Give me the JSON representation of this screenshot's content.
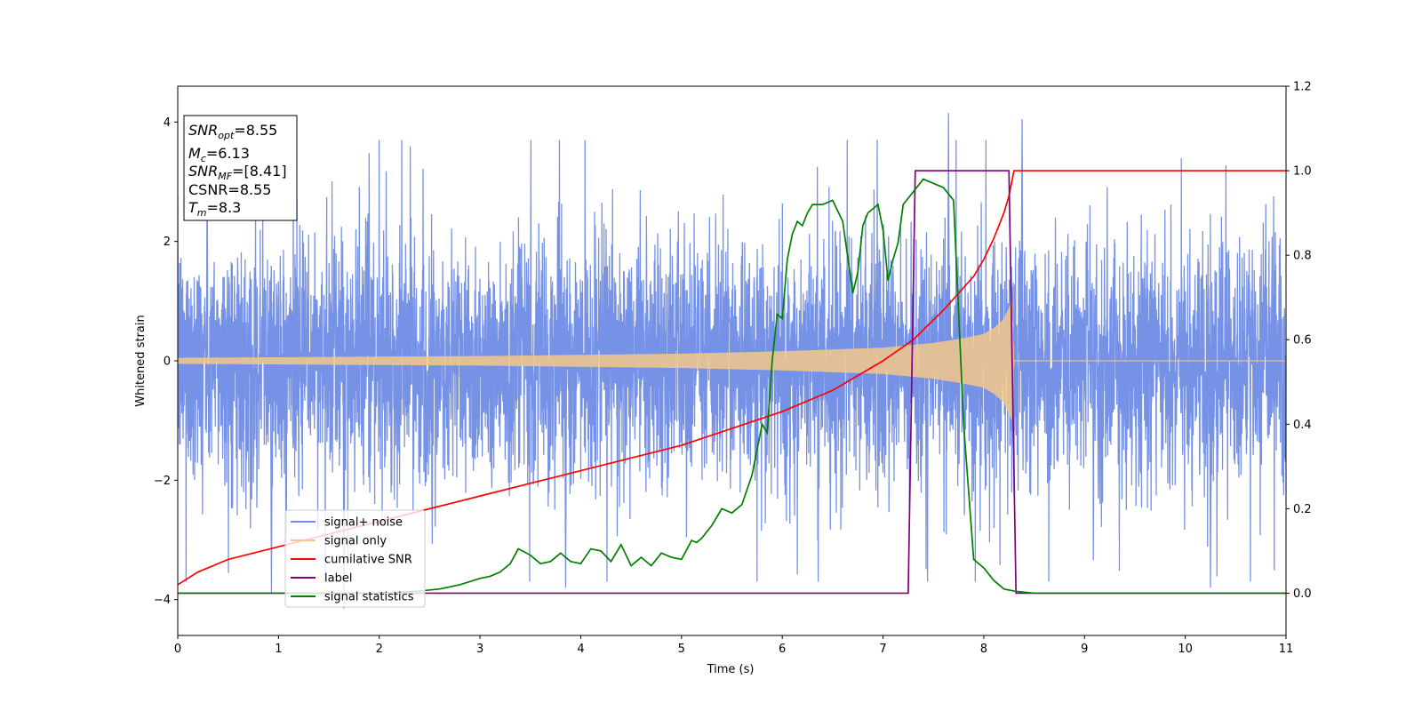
{
  "chart_data": {
    "type": "line",
    "title": "",
    "xlabel": "Time (s)",
    "ylabel_left": "Whitened strain",
    "ylabel_right": "",
    "xlim": [
      0,
      11
    ],
    "ylim_left": [
      -4.6,
      4.6
    ],
    "ylim_right": [
      -0.1,
      1.2
    ],
    "x_ticks": [
      0,
      1,
      2,
      3,
      4,
      5,
      6,
      7,
      8,
      9,
      10,
      11
    ],
    "y_ticks_left": [
      -4,
      -2,
      0,
      2,
      4
    ],
    "y_ticks_right": [
      0.0,
      0.2,
      0.4,
      0.6,
      0.8,
      1.0,
      1.2
    ],
    "x_tick_labels": [
      "0",
      "1",
      "2",
      "3",
      "4",
      "5",
      "6",
      "7",
      "8",
      "9",
      "10",
      "11"
    ],
    "y_tick_labels_left": [
      "−4",
      "−2",
      "0",
      "2",
      "4"
    ],
    "y_tick_labels_right": [
      "0.0",
      "0.2",
      "0.4",
      "0.6",
      "0.8",
      "1.0",
      "1.2"
    ],
    "grid": false,
    "legend_position": "lower-left",
    "colors": {
      "noise": "#6f8ce6",
      "signal": "#f5c88a",
      "cumulative_snr": "#ff0000",
      "label": "#800080",
      "statistics": "#008000"
    },
    "info_box": {
      "snr_opt": "=8.55",
      "mc": "=6.13",
      "snr_mf": "=[8.41]",
      "csnr": "CSNR=8.55",
      "tm": "=8.3"
    },
    "series": [
      {
        "name": "signal+ noise",
        "axis": "left",
        "description_range": [
          -4.2,
          4.2
        ],
        "x_range": [
          0,
          11
        ],
        "envelope_typical": 2.0,
        "peaks": [
          [
            1.65,
            -4.15
          ],
          [
            7.65,
            4.15
          ],
          [
            8.38,
            4.05
          ],
          [
            10.25,
            -3.8
          ],
          [
            0.93,
            -3.9
          ],
          [
            3.85,
            -3.8
          ]
        ]
      },
      {
        "name": "signal only",
        "axis": "left",
        "envelope": [
          [
            0,
            0.05
          ],
          [
            1,
            0.06
          ],
          [
            2,
            0.07
          ],
          [
            3,
            0.08
          ],
          [
            4,
            0.1
          ],
          [
            5,
            0.12
          ],
          [
            6,
            0.16
          ],
          [
            7,
            0.22
          ],
          [
            7.5,
            0.3
          ],
          [
            7.8,
            0.38
          ],
          [
            8.0,
            0.45
          ],
          [
            8.1,
            0.55
          ],
          [
            8.2,
            0.7
          ],
          [
            8.28,
            1.0
          ],
          [
            8.3,
            0.0
          ],
          [
            11,
            0.0
          ]
        ]
      },
      {
        "name": "cumilative SNR",
        "axis": "right",
        "x": [
          0,
          0.2,
          0.5,
          1,
          1.5,
          2,
          2.5,
          3,
          3.5,
          4,
          4.5,
          5,
          5.5,
          6,
          6.5,
          7,
          7.3,
          7.6,
          7.9,
          8.0,
          8.1,
          8.2,
          8.25,
          8.3,
          11
        ],
        "y": [
          0.02,
          0.05,
          0.08,
          0.11,
          0.14,
          0.17,
          0.2,
          0.23,
          0.26,
          0.29,
          0.32,
          0.35,
          0.39,
          0.43,
          0.48,
          0.55,
          0.6,
          0.67,
          0.75,
          0.79,
          0.84,
          0.9,
          0.94,
          1.0,
          1.0
        ]
      },
      {
        "name": "label",
        "axis": "right",
        "x": [
          0,
          7.25,
          7.32,
          8.25,
          8.32,
          11
        ],
        "y": [
          0.0,
          0.0,
          1.0,
          1.0,
          0.0,
          0.0
        ]
      },
      {
        "name": "signal statistics",
        "axis": "right",
        "x": [
          0,
          0.5,
          1,
          1.5,
          2,
          2.4,
          2.6,
          2.8,
          3.0,
          3.1,
          3.2,
          3.3,
          3.38,
          3.5,
          3.6,
          3.7,
          3.8,
          3.9,
          4.0,
          4.1,
          4.2,
          4.3,
          4.4,
          4.5,
          4.6,
          4.7,
          4.8,
          4.9,
          5.0,
          5.1,
          5.15,
          5.2,
          5.3,
          5.4,
          5.5,
          5.6,
          5.7,
          5.8,
          5.85,
          5.9,
          5.95,
          6.0,
          6.05,
          6.1,
          6.15,
          6.2,
          6.25,
          6.3,
          6.4,
          6.5,
          6.6,
          6.7,
          6.75,
          6.8,
          6.85,
          6.9,
          6.95,
          7.0,
          7.05,
          7.1,
          7.15,
          7.2,
          7.3,
          7.4,
          7.5,
          7.6,
          7.7,
          7.8,
          7.9,
          8.0,
          8.1,
          8.2,
          8.3,
          8.5,
          9,
          10,
          11
        ],
        "y": [
          0.0,
          0.0,
          0.0,
          0.0,
          0.0,
          0.005,
          0.01,
          0.02,
          0.035,
          0.04,
          0.05,
          0.07,
          0.105,
          0.09,
          0.07,
          0.075,
          0.095,
          0.075,
          0.07,
          0.105,
          0.1,
          0.075,
          0.115,
          0.065,
          0.085,
          0.065,
          0.095,
          0.085,
          0.08,
          0.125,
          0.12,
          0.13,
          0.16,
          0.2,
          0.19,
          0.21,
          0.28,
          0.4,
          0.38,
          0.55,
          0.66,
          0.65,
          0.79,
          0.85,
          0.88,
          0.87,
          0.9,
          0.92,
          0.92,
          0.93,
          0.88,
          0.71,
          0.76,
          0.87,
          0.9,
          0.91,
          0.92,
          0.86,
          0.74,
          0.79,
          0.83,
          0.92,
          0.95,
          0.98,
          0.97,
          0.96,
          0.93,
          0.4,
          0.08,
          0.06,
          0.03,
          0.01,
          0.005,
          0.0,
          0.0,
          0.0,
          0.0
        ]
      }
    ]
  }
}
